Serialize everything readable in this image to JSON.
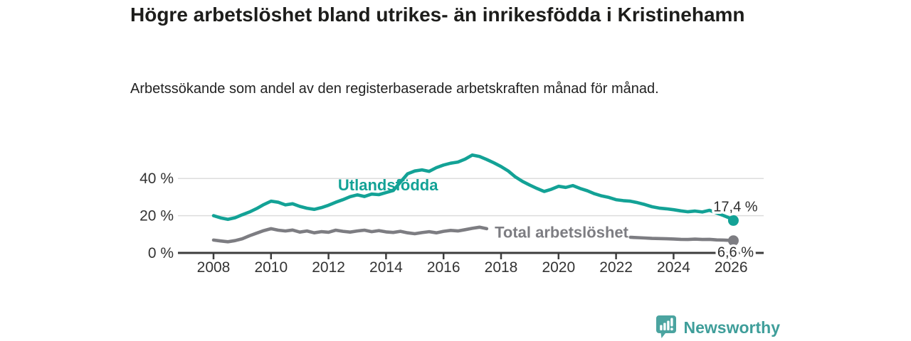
{
  "title": "Högre arbetslöshet bland utrikes- än inrikesfödda i Kristinehamn",
  "subtitle": "Arbetssökande som andel av den registerbaserade arbetskraften månad för månad.",
  "footer": {
    "brand": "Newsworthy",
    "logo_icon": "bar-chart-speech-bubble-icon"
  },
  "colors": {
    "foreign_born_line": "#13a296",
    "total_line": "#7d7d82",
    "axis": "#3d3d3d",
    "grid": "#dcdcdc",
    "tick_text": "#333333",
    "annotation_text": "#2d2d2d",
    "brand_teal": "#3f9e9a",
    "logo_fill": "#4ba4a0",
    "background": "#ffffff"
  },
  "chart_data": {
    "type": "line",
    "title": "Högre arbetslöshet bland utrikes- än inrikesfödda i Kristinehamn",
    "subtitle": "Arbetssökande som andel av den registerbaserade arbetskraften månad för månad.",
    "xlabel": "",
    "ylabel": "",
    "x_unit": "year (monthly data)",
    "y_unit": "%",
    "xlim": [
      2006.8,
      2027.1
    ],
    "ylim": [
      0,
      57
    ],
    "grid": "horizontal",
    "legend_position": "inline-labels",
    "x_ticks": [
      {
        "label": "2008",
        "value": 2008
      },
      {
        "label": "2010",
        "value": 2010
      },
      {
        "label": "2012",
        "value": 2012
      },
      {
        "label": "2014",
        "value": 2014
      },
      {
        "label": "2016",
        "value": 2016
      },
      {
        "label": "2018",
        "value": 2018
      },
      {
        "label": "2020",
        "value": 2020
      },
      {
        "label": "2022",
        "value": 2022
      },
      {
        "label": "2024",
        "value": 2024
      },
      {
        "label": "2026",
        "value": 2026
      }
    ],
    "y_ticks": [
      {
        "label": "0 %",
        "value": 0
      },
      {
        "label": "20 %",
        "value": 20
      },
      {
        "label": "40 %",
        "value": 40
      }
    ],
    "series": [
      {
        "name": "Utlandsfödda",
        "color_key": "foreign_born_line",
        "end_label": "17,4 %",
        "end_label_position": "above",
        "inline_label": {
          "x": 2012.33,
          "y": 33.6
        },
        "points": [
          [
            2008.0,
            20.0
          ],
          [
            2008.25,
            18.8
          ],
          [
            2008.5,
            18.0
          ],
          [
            2008.75,
            18.9
          ],
          [
            2009.0,
            20.5
          ],
          [
            2009.25,
            22.0
          ],
          [
            2009.5,
            23.8
          ],
          [
            2009.75,
            26.0
          ],
          [
            2010.0,
            27.8
          ],
          [
            2010.25,
            27.2
          ],
          [
            2010.5,
            25.8
          ],
          [
            2010.75,
            26.4
          ],
          [
            2011.0,
            25.0
          ],
          [
            2011.25,
            24.0
          ],
          [
            2011.5,
            23.4
          ],
          [
            2011.75,
            24.3
          ],
          [
            2012.0,
            25.6
          ],
          [
            2012.25,
            27.2
          ],
          [
            2012.5,
            28.6
          ],
          [
            2012.75,
            30.2
          ],
          [
            2013.0,
            31.2
          ],
          [
            2013.25,
            30.3
          ],
          [
            2013.5,
            31.6
          ],
          [
            2013.75,
            31.3
          ],
          [
            2014.0,
            32.4
          ],
          [
            2014.25,
            33.5
          ],
          [
            2014.5,
            38.0
          ],
          [
            2014.75,
            42.5
          ],
          [
            2015.0,
            44.0
          ],
          [
            2015.25,
            44.6
          ],
          [
            2015.5,
            43.8
          ],
          [
            2015.75,
            45.8
          ],
          [
            2016.0,
            47.2
          ],
          [
            2016.25,
            48.2
          ],
          [
            2016.5,
            48.8
          ],
          [
            2016.75,
            50.4
          ],
          [
            2017.0,
            52.6
          ],
          [
            2017.25,
            51.8
          ],
          [
            2017.5,
            50.2
          ],
          [
            2017.75,
            48.4
          ],
          [
            2018.0,
            46.4
          ],
          [
            2018.25,
            44.0
          ],
          [
            2018.5,
            40.8
          ],
          [
            2018.75,
            38.4
          ],
          [
            2019.0,
            36.4
          ],
          [
            2019.25,
            34.6
          ],
          [
            2019.5,
            33.0
          ],
          [
            2019.75,
            34.2
          ],
          [
            2020.0,
            35.8
          ],
          [
            2020.25,
            35.2
          ],
          [
            2020.5,
            36.2
          ],
          [
            2020.75,
            34.6
          ],
          [
            2021.0,
            33.4
          ],
          [
            2021.25,
            31.8
          ],
          [
            2021.5,
            30.6
          ],
          [
            2021.75,
            29.8
          ],
          [
            2022.0,
            28.6
          ],
          [
            2022.25,
            28.1
          ],
          [
            2022.5,
            27.8
          ],
          [
            2022.75,
            27.0
          ],
          [
            2023.0,
            26.0
          ],
          [
            2023.25,
            24.8
          ],
          [
            2023.5,
            24.1
          ],
          [
            2023.75,
            23.7
          ],
          [
            2024.0,
            23.2
          ],
          [
            2024.25,
            22.6
          ],
          [
            2024.5,
            22.1
          ],
          [
            2024.75,
            22.5
          ],
          [
            2025.0,
            22.0
          ],
          [
            2025.25,
            22.9
          ],
          [
            2025.5,
            21.4
          ],
          [
            2025.75,
            20.0
          ],
          [
            2026.0,
            18.4
          ],
          [
            2026.08,
            17.4
          ]
        ]
      },
      {
        "name": "Total arbetslöshet",
        "color_key": "total_line",
        "end_label": "6,6 %",
        "end_label_position": "below",
        "inline_label": {
          "x": 2017.78,
          "y": 8.2
        },
        "line_hidden_behind_label": [
          2017.5,
          2022.5
        ],
        "points": [
          [
            2008.0,
            6.9
          ],
          [
            2008.25,
            6.4
          ],
          [
            2008.5,
            6.0
          ],
          [
            2008.75,
            6.6
          ],
          [
            2009.0,
            7.6
          ],
          [
            2009.25,
            9.2
          ],
          [
            2009.5,
            10.6
          ],
          [
            2009.75,
            12.0
          ],
          [
            2010.0,
            13.0
          ],
          [
            2010.25,
            12.2
          ],
          [
            2010.5,
            11.8
          ],
          [
            2010.75,
            12.3
          ],
          [
            2011.0,
            11.2
          ],
          [
            2011.25,
            11.8
          ],
          [
            2011.5,
            10.8
          ],
          [
            2011.75,
            11.4
          ],
          [
            2012.0,
            11.1
          ],
          [
            2012.25,
            12.2
          ],
          [
            2012.5,
            11.6
          ],
          [
            2012.75,
            11.2
          ],
          [
            2013.0,
            11.8
          ],
          [
            2013.25,
            12.2
          ],
          [
            2013.5,
            11.4
          ],
          [
            2013.75,
            12.0
          ],
          [
            2014.0,
            11.3
          ],
          [
            2014.25,
            11.0
          ],
          [
            2014.5,
            11.6
          ],
          [
            2014.75,
            10.8
          ],
          [
            2015.0,
            10.3
          ],
          [
            2015.25,
            10.9
          ],
          [
            2015.5,
            11.4
          ],
          [
            2015.75,
            10.8
          ],
          [
            2016.0,
            11.6
          ],
          [
            2016.25,
            12.1
          ],
          [
            2016.5,
            11.8
          ],
          [
            2016.75,
            12.5
          ],
          [
            2017.0,
            13.2
          ],
          [
            2017.25,
            13.8
          ],
          [
            2017.5,
            13.0
          ],
          [
            2022.5,
            8.4
          ],
          [
            2022.75,
            8.2
          ],
          [
            2023.0,
            8.0
          ],
          [
            2023.25,
            7.8
          ],
          [
            2023.5,
            7.7
          ],
          [
            2023.75,
            7.6
          ],
          [
            2024.0,
            7.5
          ],
          [
            2024.25,
            7.3
          ],
          [
            2024.5,
            7.2
          ],
          [
            2024.75,
            7.4
          ],
          [
            2025.0,
            7.2
          ],
          [
            2025.25,
            7.3
          ],
          [
            2025.5,
            7.0
          ],
          [
            2025.75,
            6.9
          ],
          [
            2026.0,
            6.7
          ],
          [
            2026.08,
            6.6
          ]
        ]
      }
    ]
  }
}
